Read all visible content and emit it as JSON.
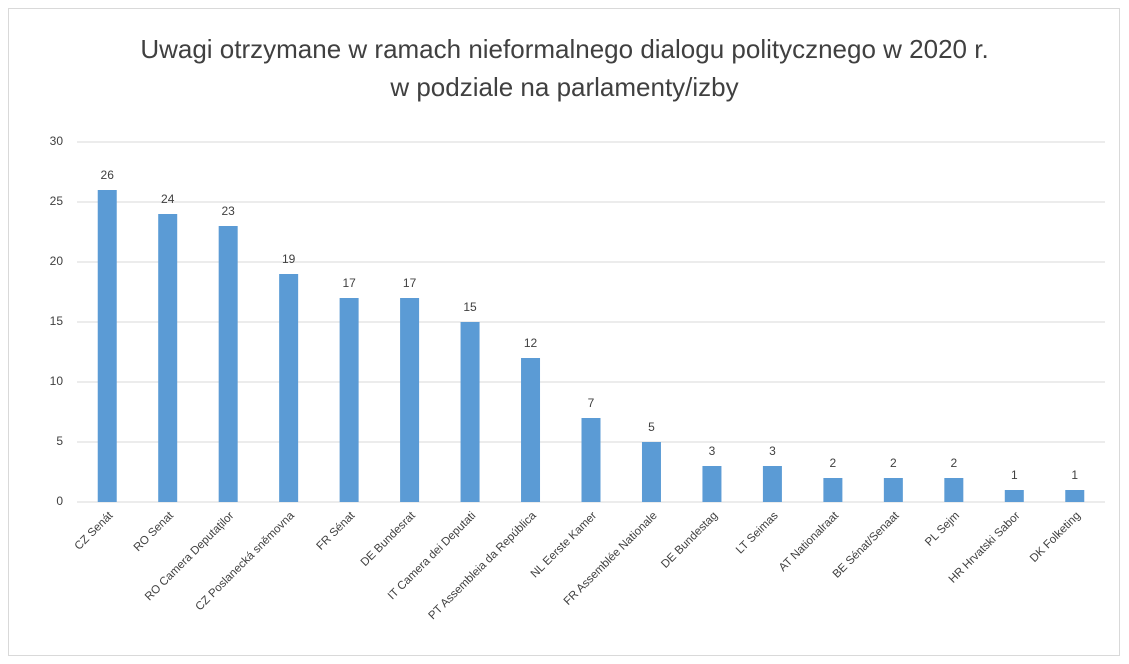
{
  "chart_data": {
    "type": "bar",
    "title": "Uwagi otrzymane w ramach nieformalnego dialogu politycznego w 2020 r. w podziale na parlamenty/izby",
    "categories": [
      "CZ Senát",
      "RO Senat",
      "RO Camera Deputaților",
      "CZ Poslanecká sněmovna",
      "FR Sénat",
      "DE Bundesrat",
      "IT Camera dei Deputati",
      "PT Assembleia da República",
      "NL Eerste Kamer",
      "FR Assemblée Nationale",
      "DE Bundestag",
      "LT Seimas",
      "AT Nationalraat",
      "BE Sénat/Senaat",
      "PL Sejm",
      "HR Hrvatski Sabor",
      "DK Folketing"
    ],
    "values": [
      26,
      24,
      23,
      19,
      17,
      17,
      15,
      12,
      7,
      5,
      3,
      3,
      2,
      2,
      2,
      1,
      1
    ],
    "color": "#5b9bd5",
    "ylim": [
      0,
      30
    ],
    "yticks": [
      0,
      5,
      10,
      15,
      20,
      25,
      30
    ],
    "grid": true
  }
}
